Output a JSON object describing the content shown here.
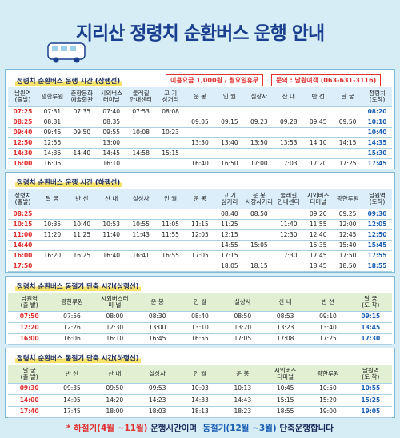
{
  "title": "지리산 정령치 순환버스 운행 안내",
  "sections": [
    {
      "title": "정령치 순환버스 운행 시간 (상행선)",
      "fare": "이용요금 1,000원 / 월요일휴무",
      "contact": "문의 : 남원여객 (063-631-3116)",
      "header": [
        "남원역\n(출발)",
        "광한루원",
        "춘향문화\n예술회관",
        "시외버스\n터미널",
        "둘레길\n안내센터",
        "고 기\n삼거리",
        "운 봉",
        "인 월",
        "실상사",
        "산 내",
        "반 선",
        "달 궁",
        "정령치\n(도착)"
      ],
      "rows": [
        [
          "07:25",
          "07:31",
          "07:35",
          "07:40",
          "07:53",
          "08:08",
          null,
          null,
          null,
          null,
          null,
          null,
          "08:20"
        ],
        [
          "08:25",
          "08:31",
          null,
          "08:35",
          null,
          null,
          "09:05",
          "09:15",
          "09:23",
          "09:28",
          "09:45",
          "09:50",
          "10:10"
        ],
        [
          "09:40",
          "09:46",
          "09:50",
          "09:55",
          "10:08",
          "10:23",
          null,
          null,
          null,
          null,
          null,
          null,
          "10:40"
        ],
        [
          "12:50",
          "12:56",
          null,
          "13:00",
          null,
          null,
          "13:30",
          "13:40",
          "13:50",
          "13:53",
          "14:10",
          "14:15",
          "14:35"
        ],
        [
          "14:30",
          "14:36",
          "14:40",
          "14:45",
          "14:58",
          "15:15",
          null,
          null,
          null,
          null,
          null,
          null,
          "15:30"
        ],
        [
          "16:00",
          "16:06",
          null,
          "16:10",
          null,
          null,
          "16:40",
          "16:50",
          "17:00",
          "17:03",
          "17:20",
          "17:25",
          "17:45"
        ]
      ]
    },
    {
      "title": "정령치 순환버스 운행 시간 (하행선)",
      "header": [
        "정령치\n(출발)",
        "달 궁",
        "반 선",
        "산 내",
        "실상사",
        "인 월",
        "운 봉",
        "고 기\n삼거리",
        "운 봉\n시장사거리",
        "둘레길\n안내센터",
        "시외버스\n터미널",
        "광한루원",
        "남원역\n(도착)"
      ],
      "rows": [
        [
          "08:25",
          null,
          null,
          null,
          null,
          null,
          null,
          "08:40",
          "08:50",
          null,
          "09:20",
          "09:25",
          "09:30"
        ],
        [
          "10:15",
          "10:35",
          "10:40",
          "10:53",
          "10:55",
          "11:05",
          "11:15",
          "11:25",
          null,
          "11:40",
          "11:55",
          "12:00",
          "12:05"
        ],
        [
          "11:00",
          "11:20",
          "11:25",
          "11:40",
          "11:43",
          "11:55",
          "12:05",
          "12:15",
          null,
          "12:30",
          "12:40",
          "12:45",
          "12:50"
        ],
        [
          "14:40",
          null,
          null,
          null,
          null,
          null,
          null,
          "14:55",
          "15:05",
          null,
          "15:35",
          "15:40",
          "15:45"
        ],
        [
          "16:00",
          "16:20",
          "16:25",
          "16:40",
          "16:41",
          "16:55",
          "17:05",
          "17:15",
          null,
          "17:30",
          "17:45",
          "17:50",
          "17:55"
        ],
        [
          "17:50",
          null,
          null,
          null,
          null,
          null,
          null,
          "18:05",
          "18:15",
          null,
          "18:45",
          "18:50",
          "18:55"
        ]
      ]
    },
    {
      "title": "정령치 순환버스 동절기 단축 시간(상행선)",
      "header": [
        "남원역\n(출 발)",
        "광한루원",
        "시외버스터\n미 널",
        "운 봉",
        "인 월",
        "실상사",
        "산 내",
        "반 선",
        "달 궁\n(도 착)"
      ],
      "rows": [
        [
          "07:50",
          "07:56",
          "08:00",
          "08:30",
          "08:40",
          "08:50",
          "08:53",
          "09:10",
          "09:15"
        ],
        [
          "12:20",
          "12:26",
          "12:30",
          "13:00",
          "13:10",
          "13:20",
          "13:23",
          "13:40",
          "13:45"
        ],
        [
          "16:00",
          "16:06",
          "16:10",
          "16:45",
          "16:55",
          "17:05",
          "17:08",
          "17:25",
          "17:30"
        ]
      ]
    },
    {
      "title": "정령치 순환버스 동절기 단축 시간(하행선)",
      "header": [
        "달 궁\n(출 발)",
        "반 선",
        "산 내",
        "실상사",
        "인 월",
        "운 봉",
        "시외버스\n터미널",
        "광한루원",
        "남원역\n(도 착)"
      ],
      "rows": [
        [
          "09:30",
          "09:35",
          "09:50",
          "09:53",
          "10:03",
          "10:13",
          "10:45",
          "10:50",
          "10:55"
        ],
        [
          "14:00",
          "14:05",
          "14:20",
          "14:23",
          "14:33",
          "14:43",
          "15:15",
          "15:20",
          "15:25"
        ],
        [
          "17:40",
          "17:45",
          "18:00",
          "18:03",
          "18:13",
          "18:23",
          "18:55",
          "19:00",
          "19:05"
        ]
      ]
    }
  ],
  "footer": {
    "summer": "* 하절기(4월 ~11월)",
    "summer_text": "운행시간이며",
    "winter": "동절기(12월 ~3월)",
    "winter_text": "단축운행합니다"
  }
}
